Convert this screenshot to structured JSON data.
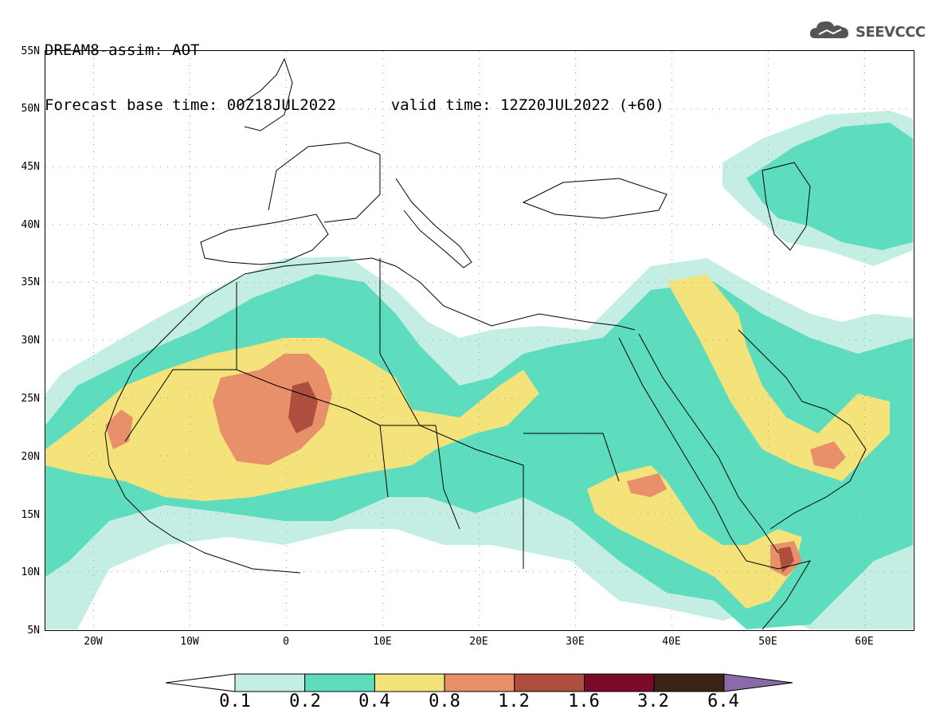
{
  "header": {
    "line1": "DREAM8-assim: AOT",
    "base_time": "Forecast base time: 00Z18JUL2022",
    "valid_time": "valid time: 12Z20JUL2022 (+60)"
  },
  "logo": {
    "icon": "cloud-icon",
    "text": "SEEVCCC"
  },
  "map": {
    "lat_labels": [
      "55N",
      "50N",
      "45N",
      "40N",
      "35N",
      "30N",
      "25N",
      "20N",
      "15N",
      "10N",
      "5N"
    ],
    "lon_labels": [
      "20W",
      "10W",
      "0",
      "10E",
      "20E",
      "30E",
      "40E",
      "50E",
      "60E"
    ],
    "lon_range": [
      -25,
      65
    ],
    "lat_range": [
      5,
      55
    ],
    "grid": "dotted"
  },
  "colorbar": {
    "levels": [
      "0.1",
      "0.2",
      "0.4",
      "0.8",
      "1.2",
      "1.6",
      "3.2",
      "6.4"
    ],
    "colors": [
      "#ffffff",
      "#c4eee4",
      "#5dddbe",
      "#f4e37a",
      "#e8906a",
      "#ad4e3e",
      "#7a0a28",
      "#3a2416",
      "#8a6aa8"
    ]
  }
}
